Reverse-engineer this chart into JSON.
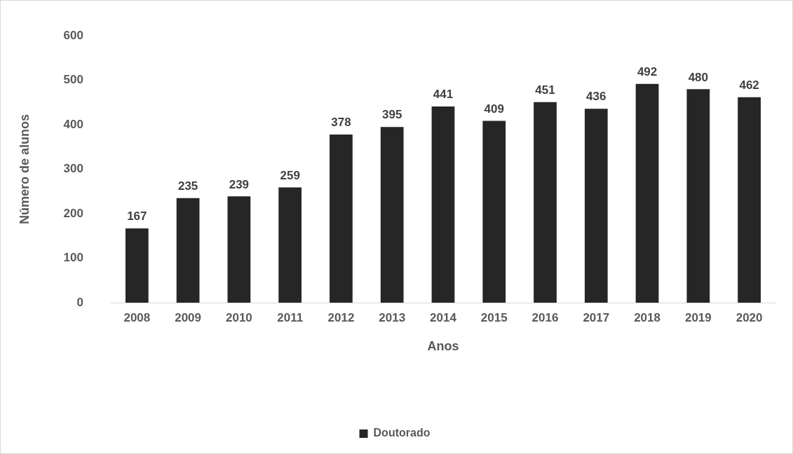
{
  "chart_data": {
    "type": "bar",
    "xlabel": "Anos",
    "ylabel": "Número de alunos",
    "categories": [
      "2008",
      "2009",
      "2010",
      "2011",
      "2012",
      "2013",
      "2014",
      "2015",
      "2016",
      "2017",
      "2018",
      "2019",
      "2020"
    ],
    "series": [
      {
        "name": "Doutorado",
        "color": "#262626",
        "values": [
          167,
          235,
          239,
          259,
          378,
          395,
          441,
          409,
          451,
          436,
          492,
          480,
          462
        ]
      }
    ],
    "ylim": [
      0,
      600
    ],
    "yticks": [
      0,
      100,
      200,
      300,
      400,
      500,
      600
    ],
    "grid": false,
    "legend": "bottom",
    "data_labels": true
  }
}
